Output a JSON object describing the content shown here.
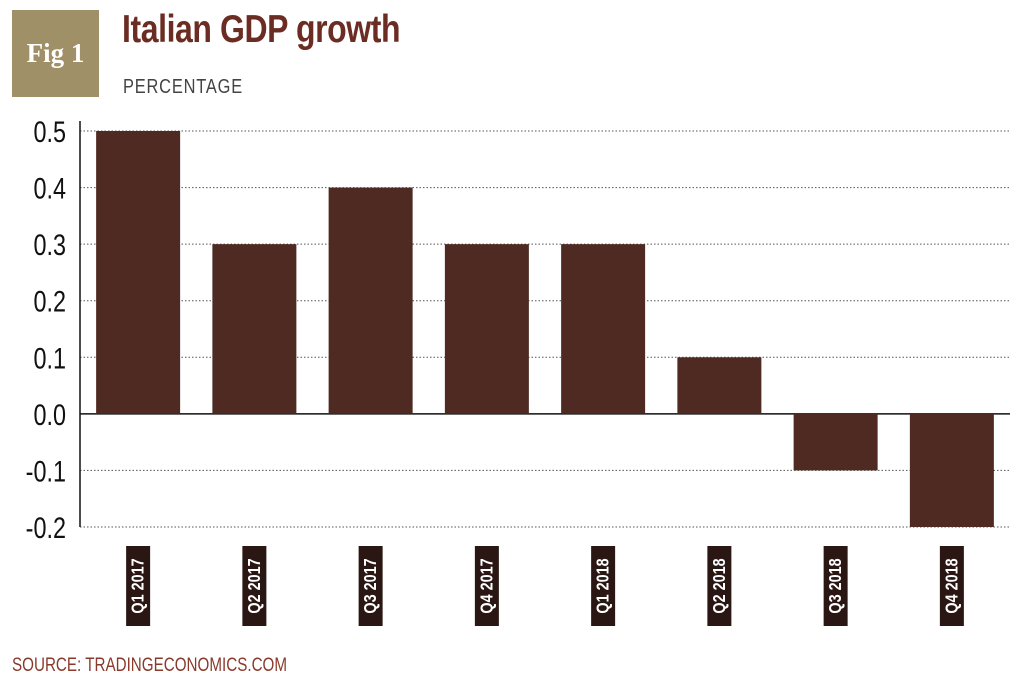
{
  "figure": {
    "badge_label": "Fig 1",
    "title": "Italian GDP growth",
    "subtitle": "PERCENTAGE",
    "source": "SOURCE: TRADINGECONOMICS.COM"
  },
  "colors": {
    "bar": "#4e2a22",
    "title": "#6b2d23",
    "badge_bg": "#a09068",
    "source": "#8a3a2c",
    "grid": "#555555",
    "tick_label_bg": "#2a1713"
  },
  "chart_data": {
    "type": "bar",
    "title": "Italian GDP growth",
    "ylabel": "PERCENTAGE",
    "xlabel": "",
    "categories": [
      "Q1 2017",
      "Q2 2017",
      "Q3 2017",
      "Q4 2017",
      "Q1 2018",
      "Q2 2018",
      "Q3 2018",
      "Q4 2018"
    ],
    "values": [
      0.5,
      0.3,
      0.4,
      0.3,
      0.3,
      0.1,
      -0.1,
      -0.2
    ],
    "ylim": [
      -0.2,
      0.5
    ],
    "yticks": [
      "0.5",
      "0.4",
      "0.3",
      "0.2",
      "0.1",
      "0.0",
      "-0.1",
      "-0.2"
    ],
    "ytick_values": [
      0.5,
      0.4,
      0.3,
      0.2,
      0.1,
      0.0,
      -0.1,
      -0.2
    ],
    "grid": true
  }
}
